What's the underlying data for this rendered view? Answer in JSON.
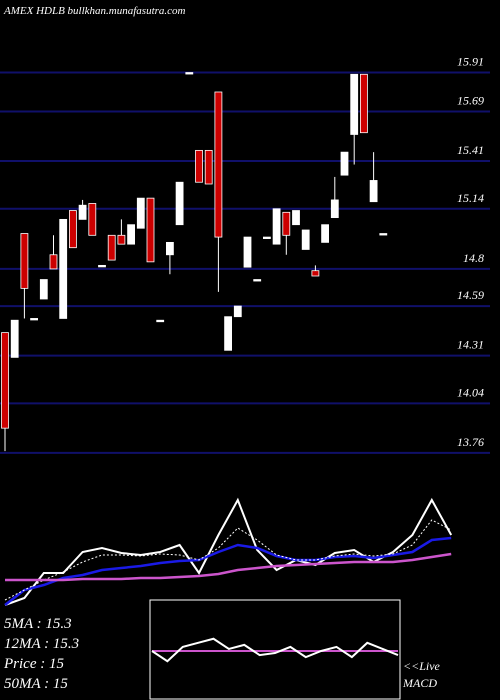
{
  "header": "AMEX  HDLB bullkhan.munafasutra.com",
  "chart_data": [
    {
      "type": "candlestick",
      "ylim": [
        13.72,
        16.32
      ],
      "yticks": [
        15.91,
        15.69,
        15.41,
        15.14,
        14.8,
        14.59,
        14.31,
        14.04,
        13.76
      ],
      "grid": true,
      "grid_color": "#10106a",
      "up_color": "#ffffff",
      "down_color": "#cc0000",
      "open": [
        14.44,
        14.3,
        15.0,
        14.52,
        14.63,
        14.88,
        14.52,
        15.13,
        15.08,
        15.17,
        14.82,
        14.99,
        14.99,
        14.94,
        15.03,
        15.2,
        14.51,
        14.88,
        15.05,
        15.91,
        15.47,
        15.47,
        15.8,
        14.34,
        14.53,
        14.81,
        14.74,
        14.98,
        14.94,
        15.12,
        15.05,
        14.91,
        14.79,
        14.95,
        15.09,
        15.33,
        15.56,
        15.9,
        15.18,
        15.0
      ],
      "high": [
        14.44,
        14.51,
        15.0,
        14.52,
        14.74,
        14.99,
        15.08,
        15.13,
        15.19,
        15.17,
        14.82,
        14.99,
        15.08,
        15.05,
        15.2,
        15.2,
        14.51,
        14.95,
        15.29,
        15.91,
        15.47,
        15.47,
        15.8,
        14.53,
        14.59,
        14.98,
        14.74,
        14.98,
        15.14,
        15.12,
        15.13,
        15.02,
        14.82,
        15.05,
        15.32,
        15.46,
        15.9,
        15.9,
        15.46,
        15.0
      ],
      "low": [
        13.77,
        14.3,
        14.52,
        14.52,
        14.63,
        14.8,
        14.52,
        14.92,
        15.08,
        14.99,
        14.82,
        14.85,
        14.94,
        14.94,
        15.03,
        14.84,
        14.51,
        14.77,
        15.05,
        15.91,
        15.29,
        15.28,
        14.67,
        14.34,
        14.53,
        14.81,
        14.74,
        14.98,
        14.94,
        14.88,
        15.05,
        14.91,
        14.76,
        14.95,
        15.09,
        15.33,
        15.39,
        15.57,
        15.18,
        15.0
      ],
      "close": [
        13.9,
        14.51,
        14.69,
        14.52,
        14.74,
        14.8,
        15.08,
        14.92,
        15.16,
        14.99,
        14.82,
        14.85,
        14.94,
        15.05,
        15.2,
        14.84,
        14.51,
        14.95,
        15.29,
        15.91,
        15.29,
        15.28,
        14.98,
        14.53,
        14.59,
        14.98,
        14.74,
        14.98,
        15.14,
        14.99,
        15.13,
        15.02,
        14.76,
        15.05,
        15.19,
        15.46,
        15.9,
        15.57,
        15.3,
        15.0
      ]
    },
    {
      "type": "line",
      "ylim": [
        0,
        110
      ],
      "x": [
        0,
        2,
        4,
        6,
        8,
        10,
        12,
        14,
        16,
        18,
        20,
        22,
        24,
        26,
        28,
        30,
        32,
        34,
        36,
        38,
        40,
        42,
        44,
        46
      ],
      "series": [
        {
          "name": "Price",
          "color": "#ffffff",
          "width": 2,
          "values": [
            5,
            12,
            37,
            37,
            58,
            62,
            57,
            55,
            58,
            65,
            37,
            75,
            110,
            60,
            40,
            50,
            45,
            57,
            60,
            48,
            58,
            75,
            110,
            75
          ]
        },
        {
          "name": "12MA",
          "color": "#1a1ae6",
          "width": 2.5,
          "values": [
            5,
            20,
            25,
            32,
            35,
            40,
            42,
            44,
            47,
            49,
            50,
            58,
            65,
            62,
            54,
            50,
            50,
            53,
            54,
            52,
            55,
            58,
            70,
            72
          ]
        },
        {
          "name": "5MA",
          "color": "#ffffff",
          "width": 1,
          "dash": true,
          "values": [
            10,
            20,
            30,
            38,
            48,
            55,
            55,
            54,
            56,
            55,
            50,
            62,
            82,
            70,
            55,
            50,
            50,
            54,
            56,
            54,
            56,
            65,
            90,
            80
          ]
        },
        {
          "name": "50MA",
          "color": "#cc55cc",
          "width": 2.5,
          "values": [
            30,
            30,
            30,
            30,
            31,
            31,
            31,
            32,
            32,
            33,
            34,
            36,
            40,
            42,
            44,
            45,
            46,
            47,
            48,
            48,
            48,
            50,
            53,
            56
          ]
        }
      ],
      "stats": [
        "5MA : 15.3",
        "12MA : 15.3",
        "Price  : 15",
        "50MA : 15"
      ]
    },
    {
      "type": "macd",
      "ylim": [
        -25,
        25
      ],
      "x": [
        0,
        1,
        2,
        3,
        4,
        5,
        6,
        7,
        8,
        9,
        10,
        11,
        12,
        13,
        14,
        15,
        16
      ],
      "series": [
        {
          "name": "MACD",
          "color": "#ffffff",
          "values": [
            0,
            -5,
            2,
            4,
            6,
            1,
            3,
            -2,
            -1,
            2,
            -3,
            0,
            2,
            -3,
            4,
            1,
            -2
          ]
        },
        {
          "name": "Signal",
          "color": "#cc55cc",
          "values": [
            0,
            0,
            0,
            0,
            0,
            0,
            0,
            0,
            0,
            0,
            0,
            0,
            0,
            0,
            0,
            0,
            0
          ]
        }
      ],
      "label": [
        "<<Live",
        "MACD"
      ]
    }
  ]
}
